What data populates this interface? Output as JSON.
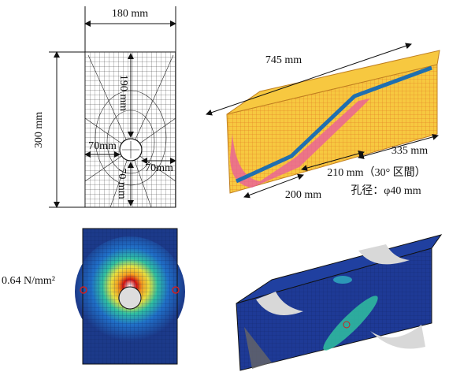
{
  "section_dimensions": {
    "width": "180 mm",
    "height": "300 mm",
    "upper": "190 mm",
    "left": "70mm",
    "right": "70mm",
    "lower": "70 mm"
  },
  "beam_dimensions": {
    "length": "745 mm",
    "right_segment": "335 mm",
    "inclined_segment": "210 mm（30° 区間）",
    "left_segment": "200 mm",
    "hole": "孔径：φ40 mm"
  },
  "stress_annotation": "0.64 N/mm²"
}
